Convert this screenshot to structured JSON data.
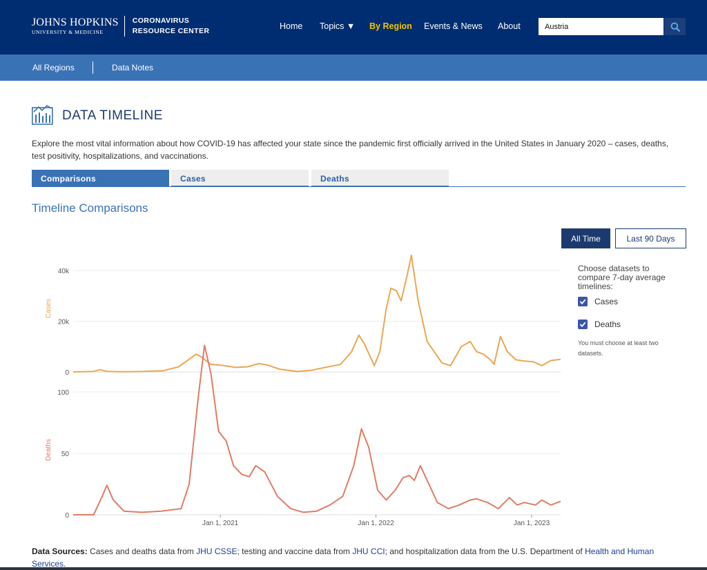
{
  "header": {
    "logo_main": "JOHNS HOPKINS",
    "logo_sub": "UNIVERSITY & MEDICINE",
    "logo_center_line1": "CORONAVIRUS",
    "logo_center_line2": "RESOURCE CENTER",
    "nav": [
      {
        "label": "Home"
      },
      {
        "label": "Topics ▼"
      },
      {
        "label": "By Region",
        "active": true
      },
      {
        "label": "Events & News"
      },
      {
        "label": "About"
      }
    ],
    "search_value": "Austria",
    "search_icon": "magnifier"
  },
  "subnav": {
    "items": [
      "All Regions",
      "Data Notes"
    ]
  },
  "page": {
    "title": "DATA TIMELINE",
    "intro": "Explore the most vital information about how COVID-19 has affected your state since the pandemic first officially arrived in the United States in January 2020 – cases, deaths, test positivity, hospitalizations, and vaccinations.",
    "tabs": [
      "Comparisons",
      "Cases",
      "Deaths"
    ],
    "section_title": "Timeline Comparisons",
    "range_buttons": [
      "All Time",
      "Last 90 Days"
    ],
    "choose_text": "Choose datasets to compare 7-day average timelines:",
    "datasets": [
      "Cases",
      "Deaths"
    ],
    "note": "You must choose at least two datasets."
  },
  "sources": {
    "label": "Data Sources:",
    "t1": " Cases and deaths data from ",
    "l1": "JHU CSSE",
    "t2": "; testing and vaccine data from ",
    "l2": "JHU CCI",
    "t3": "; and hospitalization data from the U.S. Department of ",
    "l3": "Health and Human Services",
    "t4": "."
  },
  "colors": {
    "cases": "#eba650",
    "deaths": "#e07b63",
    "navy": "#002d72",
    "accent": "#3a72b6"
  },
  "chart_data": [
    {
      "type": "line",
      "ylabel": "Cases",
      "ylim": [
        0,
        46000
      ],
      "yticks": [
        {
          "v": 0,
          "label": "0"
        },
        {
          "v": 20000,
          "label": "20k"
        },
        {
          "v": 40000,
          "label": "40k"
        }
      ],
      "date_range": [
        "2020-01-22",
        "2023-03-10"
      ],
      "series": [
        {
          "name": "Cases",
          "points": [
            [
              "2020-01-22",
              0
            ],
            [
              "2020-03-10",
              200
            ],
            [
              "2020-03-25",
              900
            ],
            [
              "2020-04-10",
              200
            ],
            [
              "2020-05-15",
              80
            ],
            [
              "2020-07-01",
              150
            ],
            [
              "2020-08-20",
              500
            ],
            [
              "2020-09-25",
              2000
            ],
            [
              "2020-10-20",
              5000
            ],
            [
              "2020-11-05",
              7000
            ],
            [
              "2020-11-15",
              6200
            ],
            [
              "2020-12-10",
              3000
            ],
            [
              "2021-01-10",
              2500
            ],
            [
              "2021-02-05",
              1800
            ],
            [
              "2021-03-05",
              2000
            ],
            [
              "2021-04-01",
              3300
            ],
            [
              "2021-04-20",
              2800
            ],
            [
              "2021-05-20",
              1100
            ],
            [
              "2021-07-01",
              150
            ],
            [
              "2021-08-01",
              600
            ],
            [
              "2021-09-01",
              1700
            ],
            [
              "2021-10-10",
              3000
            ],
            [
              "2021-11-05",
              8000
            ],
            [
              "2021-11-22",
              14500
            ],
            [
              "2021-12-05",
              11000
            ],
            [
              "2021-12-28",
              2500
            ],
            [
              "2022-01-10",
              8000
            ],
            [
              "2022-01-25",
              25000
            ],
            [
              "2022-02-05",
              33000
            ],
            [
              "2022-02-18",
              32000
            ],
            [
              "2022-03-01",
              28000
            ],
            [
              "2022-03-15",
              38000
            ],
            [
              "2022-03-25",
              46000
            ],
            [
              "2022-04-10",
              28000
            ],
            [
              "2022-05-01",
              12000
            ],
            [
              "2022-06-05",
              3500
            ],
            [
              "2022-06-25",
              2500
            ],
            [
              "2022-07-20",
              10000
            ],
            [
              "2022-08-10",
              12000
            ],
            [
              "2022-08-25",
              8000
            ],
            [
              "2022-09-10",
              7000
            ],
            [
              "2022-09-25",
              5000
            ],
            [
              "2022-10-05",
              3000
            ],
            [
              "2022-10-20",
              14000
            ],
            [
              "2022-11-05",
              8000
            ],
            [
              "2022-11-25",
              4800
            ],
            [
              "2022-12-15",
              4300
            ],
            [
              "2023-01-05",
              4000
            ],
            [
              "2023-01-25",
              2500
            ],
            [
              "2023-02-15",
              4500
            ],
            [
              "2023-03-10",
              5000
            ]
          ]
        }
      ]
    },
    {
      "type": "line",
      "ylabel": "Deaths",
      "ylim": [
        0,
        140
      ],
      "yticks": [
        {
          "v": 0,
          "label": "0"
        },
        {
          "v": 50,
          "label": "50"
        },
        {
          "v": 100,
          "label": "100"
        }
      ],
      "xticks": [
        {
          "date": "2021-01-01",
          "label": "Jan 1, 2021"
        },
        {
          "date": "2022-01-01",
          "label": "Jan 1, 2022"
        },
        {
          "date": "2023-01-01",
          "label": "Jan 1, 2023"
        }
      ],
      "date_range": [
        "2020-01-22",
        "2023-03-10"
      ],
      "series": [
        {
          "name": "Deaths",
          "points": [
            [
              "2020-01-22",
              0
            ],
            [
              "2020-03-10",
              0
            ],
            [
              "2020-03-30",
              15
            ],
            [
              "2020-04-10",
              24
            ],
            [
              "2020-04-25",
              12
            ],
            [
              "2020-05-20",
              3
            ],
            [
              "2020-07-01",
              2
            ],
            [
              "2020-08-15",
              3
            ],
            [
              "2020-10-01",
              5
            ],
            [
              "2020-10-20",
              25
            ],
            [
              "2020-11-10",
              95
            ],
            [
              "2020-11-25",
              138
            ],
            [
              "2020-12-10",
              115
            ],
            [
              "2020-12-28",
              68
            ],
            [
              "2021-01-15",
              60
            ],
            [
              "2021-02-01",
              40
            ],
            [
              "2021-02-20",
              33
            ],
            [
              "2021-03-10",
              31
            ],
            [
              "2021-03-25",
              40
            ],
            [
              "2021-04-15",
              35
            ],
            [
              "2021-05-15",
              15
            ],
            [
              "2021-06-15",
              5
            ],
            [
              "2021-07-15",
              2
            ],
            [
              "2021-08-15",
              3
            ],
            [
              "2021-09-15",
              8
            ],
            [
              "2021-10-15",
              15
            ],
            [
              "2021-11-10",
              40
            ],
            [
              "2021-11-28",
              70
            ],
            [
              "2021-12-15",
              55
            ],
            [
              "2022-01-05",
              20
            ],
            [
              "2022-01-25",
              12
            ],
            [
              "2022-02-15",
              20
            ],
            [
              "2022-03-05",
              30
            ],
            [
              "2022-03-20",
              32
            ],
            [
              "2022-04-01",
              28
            ],
            [
              "2022-04-15",
              40
            ],
            [
              "2022-05-01",
              28
            ],
            [
              "2022-05-25",
              10
            ],
            [
              "2022-06-20",
              5
            ],
            [
              "2022-07-15",
              8
            ],
            [
              "2022-08-10",
              12
            ],
            [
              "2022-08-25",
              13
            ],
            [
              "2022-09-20",
              10
            ],
            [
              "2022-10-15",
              5
            ],
            [
              "2022-11-10",
              14
            ],
            [
              "2022-11-28",
              8
            ],
            [
              "2022-12-15",
              10
            ],
            [
              "2023-01-10",
              8
            ],
            [
              "2023-01-25",
              12
            ],
            [
              "2023-02-15",
              8
            ],
            [
              "2023-03-10",
              11
            ]
          ]
        }
      ]
    }
  ]
}
